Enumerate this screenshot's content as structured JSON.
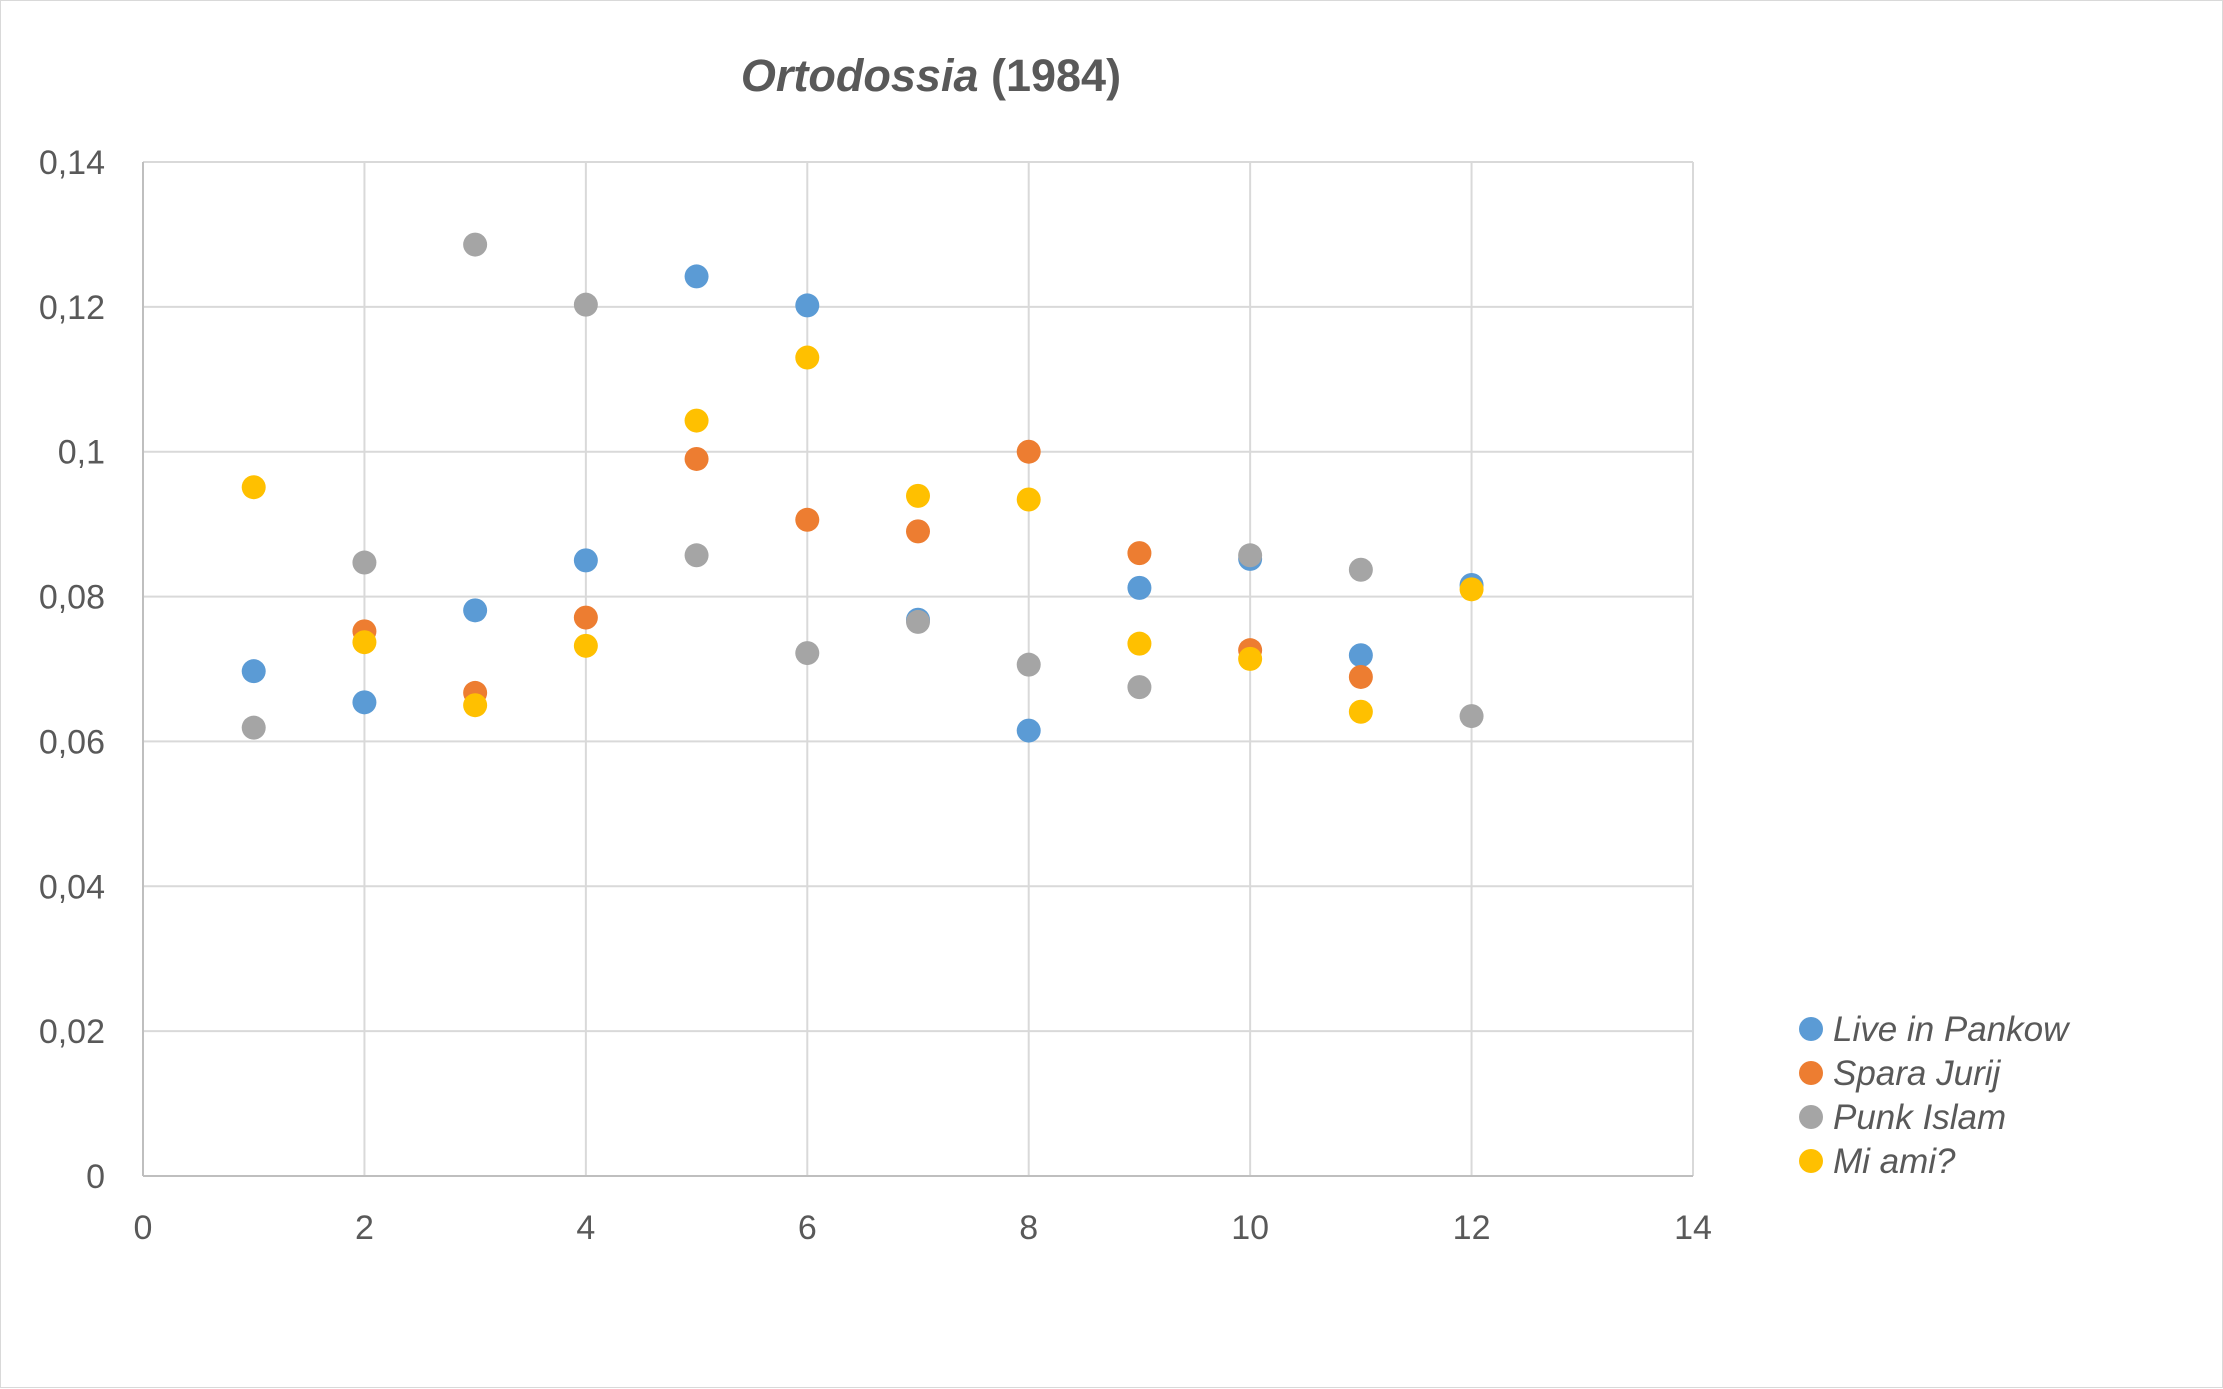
{
  "chart_data": {
    "type": "scatter",
    "title_italic": "Ortodossia",
    "title_rest": " (1984)",
    "xlabel": "",
    "ylabel": "",
    "xlim": [
      0,
      14
    ],
    "ylim": [
      0,
      0.14
    ],
    "x_ticks": [
      0,
      2,
      4,
      6,
      8,
      10,
      12,
      14
    ],
    "x_tick_labels": [
      "0",
      "2",
      "4",
      "6",
      "8",
      "10",
      "12",
      "14"
    ],
    "y_ticks": [
      0,
      0.02,
      0.04,
      0.06,
      0.08,
      0.1,
      0.12,
      0.14
    ],
    "y_tick_labels": [
      "0",
      "0,02",
      "0,04",
      "0,06",
      "0,08",
      "0,1",
      "0,12",
      "0,14"
    ],
    "grid": true,
    "legend_position": "right",
    "series": [
      {
        "name": "Live in Pankow",
        "color": "#5b9bd5",
        "x": [
          1,
          2,
          3,
          4,
          5,
          6,
          7,
          8,
          9,
          10,
          11,
          12
        ],
        "y": [
          0.0697,
          0.0654,
          0.0781,
          0.085,
          0.1242,
          0.1202,
          0.0768,
          0.0615,
          0.0812,
          0.0852,
          0.0719,
          0.0816
        ]
      },
      {
        "name": "Spara Jurij",
        "color": "#ed7d31",
        "x": [
          2,
          3,
          4,
          5,
          6,
          7,
          8,
          9,
          10,
          11
        ],
        "y": [
          0.0752,
          0.0667,
          0.0771,
          0.099,
          0.0906,
          0.089,
          0.1,
          0.086,
          0.0726,
          0.0689
        ]
      },
      {
        "name": "Punk Islam",
        "color": "#a5a5a5",
        "x": [
          1,
          2,
          3,
          4,
          5,
          6,
          7,
          8,
          9,
          10,
          11,
          12
        ],
        "y": [
          0.0619,
          0.0847,
          0.1286,
          0.1203,
          0.0857,
          0.0722,
          0.0765,
          0.0706,
          0.0675,
          0.0857,
          0.0837,
          0.0635
        ]
      },
      {
        "name": "Mi ami?",
        "color": "#ffc000",
        "x": [
          1,
          2,
          3,
          4,
          5,
          6,
          7,
          8,
          9,
          10,
          11,
          12
        ],
        "y": [
          0.0951,
          0.0737,
          0.065,
          0.0732,
          0.1043,
          0.113,
          0.0939,
          0.0934,
          0.0735,
          0.0714,
          0.0641,
          0.081
        ]
      }
    ]
  }
}
